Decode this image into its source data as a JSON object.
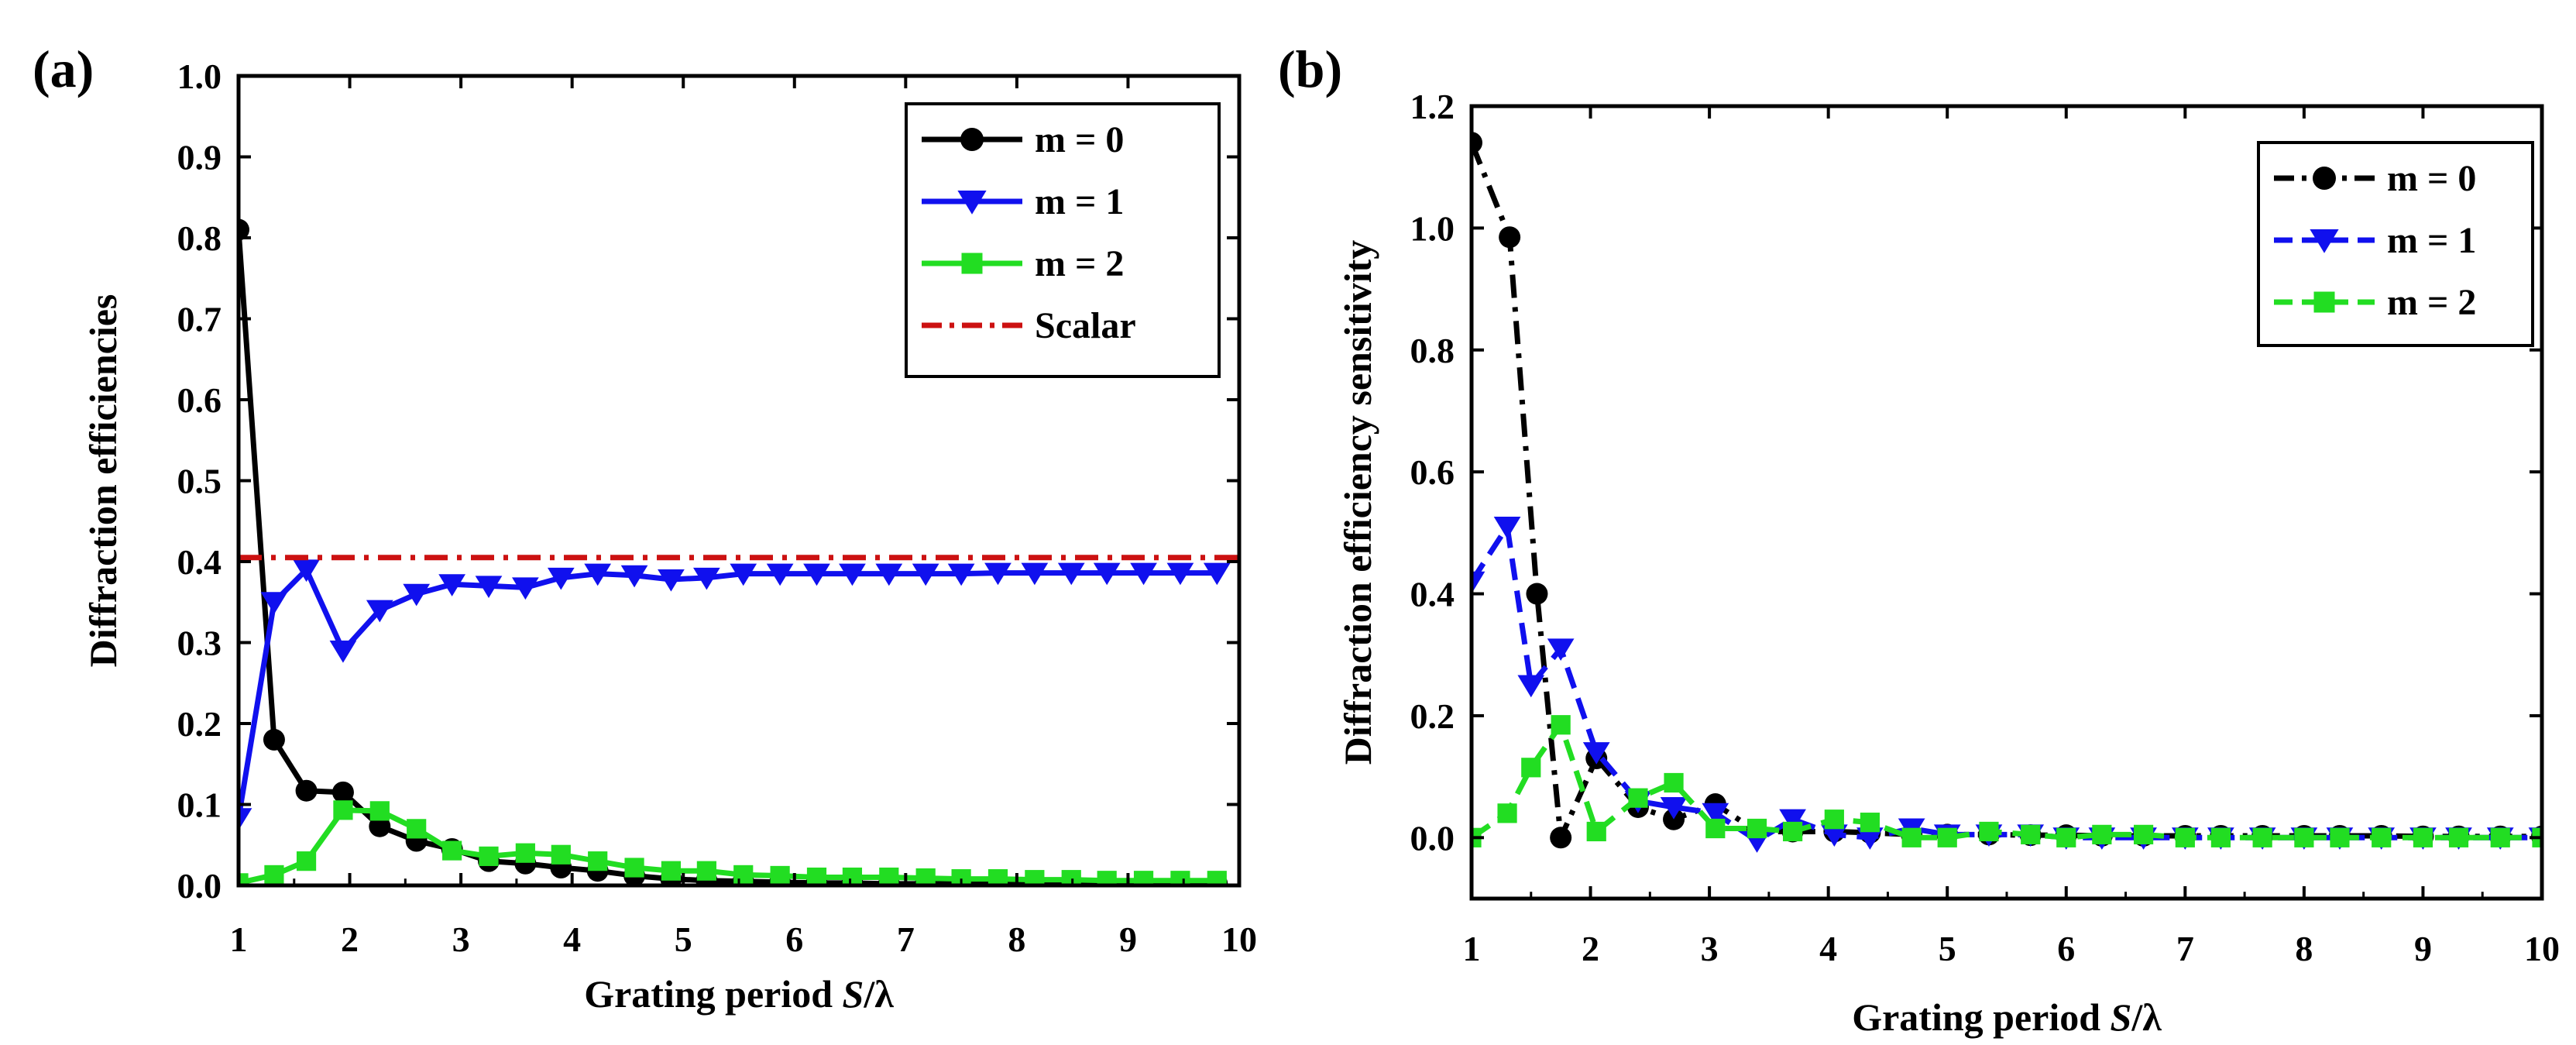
{
  "colors": {
    "m0": "#000000",
    "m1": "#1010ee",
    "m2": "#22dd22",
    "scalar": "#cc1111"
  },
  "chart_data": [
    {
      "type": "line",
      "panel_label": "(a)",
      "xlabel_prefix": "Grating period ",
      "xlabel_var": "S",
      "xlabel_suffix": "/λ",
      "ylabel": "Diffraction efficiencies",
      "xlim": [
        1,
        10
      ],
      "ylim": [
        0,
        1.0
      ],
      "xticks": [
        "1",
        "2",
        "3",
        "4",
        "5",
        "6",
        "7",
        "8",
        "9",
        "10"
      ],
      "yticks": [
        "0.0",
        "0.1",
        "0.2",
        "0.3",
        "0.4",
        "0.5",
        "0.6",
        "0.7",
        "0.8",
        "0.9",
        "1.0"
      ],
      "legend_position": "top-right",
      "series": [
        {
          "name": "m = 0",
          "color_key": "m0",
          "marker": "circle",
          "dash": "solid",
          "x": [
            1.0,
            1.32,
            1.61,
            1.94,
            2.27,
            2.6,
            2.92,
            3.25,
            3.58,
            3.9,
            4.23,
            4.56,
            4.89,
            5.21,
            5.54,
            5.87,
            6.2,
            6.52,
            6.85,
            7.18,
            7.5,
            7.83,
            8.16,
            8.49,
            8.81,
            9.14,
            9.47,
            9.8
          ],
          "y": [
            0.81,
            0.18,
            0.117,
            0.115,
            0.073,
            0.055,
            0.045,
            0.03,
            0.027,
            0.022,
            0.018,
            0.012,
            0.008,
            0.006,
            0.005,
            0.004,
            0.003,
            0.003,
            0.002,
            0.002,
            0.002,
            0.002,
            0.002,
            0.002,
            0.002,
            0.002,
            0.002,
            0.002
          ]
        },
        {
          "name": "m = 1",
          "color_key": "m1",
          "marker": "triangle-down",
          "dash": "solid",
          "x": [
            1.0,
            1.32,
            1.61,
            1.94,
            2.27,
            2.6,
            2.92,
            3.25,
            3.58,
            3.9,
            4.23,
            4.56,
            4.89,
            5.21,
            5.54,
            5.87,
            6.2,
            6.52,
            6.85,
            7.18,
            7.5,
            7.83,
            8.16,
            8.49,
            8.81,
            9.14,
            9.47,
            9.8
          ],
          "y": [
            0.083,
            0.35,
            0.39,
            0.29,
            0.34,
            0.36,
            0.372,
            0.37,
            0.368,
            0.38,
            0.385,
            0.383,
            0.378,
            0.38,
            0.385,
            0.385,
            0.385,
            0.385,
            0.385,
            0.385,
            0.385,
            0.386,
            0.386,
            0.386,
            0.386,
            0.386,
            0.386,
            0.386
          ]
        },
        {
          "name": "m = 2",
          "color_key": "m2",
          "marker": "square",
          "dash": "solid",
          "x": [
            1.0,
            1.32,
            1.61,
            1.94,
            2.27,
            2.6,
            2.92,
            3.25,
            3.58,
            3.9,
            4.23,
            4.56,
            4.89,
            5.21,
            5.54,
            5.87,
            6.2,
            6.52,
            6.85,
            7.18,
            7.5,
            7.83,
            8.16,
            8.49,
            8.81,
            9.14,
            9.47,
            9.8
          ],
          "y": [
            0.003,
            0.013,
            0.03,
            0.093,
            0.092,
            0.07,
            0.043,
            0.036,
            0.04,
            0.038,
            0.03,
            0.022,
            0.018,
            0.018,
            0.013,
            0.012,
            0.01,
            0.01,
            0.01,
            0.009,
            0.008,
            0.008,
            0.007,
            0.007,
            0.006,
            0.006,
            0.006,
            0.006
          ]
        },
        {
          "name": "Scalar",
          "color_key": "scalar",
          "marker": "none",
          "dash": "dashdot",
          "x": [
            1.0,
            10.0
          ],
          "y": [
            0.405,
            0.405
          ]
        }
      ]
    },
    {
      "type": "line",
      "panel_label": "(b)",
      "xlabel_prefix": "Grating period ",
      "xlabel_var": "S",
      "xlabel_suffix": "/λ",
      "ylabel": "Diffraction efficiency sensitivity",
      "xlim": [
        1,
        10
      ],
      "ylim": [
        -0.1,
        1.2
      ],
      "xticks": [
        "1",
        "2",
        "3",
        "4",
        "5",
        "6",
        "7",
        "8",
        "9",
        "10"
      ],
      "ytick_values": [
        0.0,
        0.2,
        0.4,
        0.6,
        0.8,
        1.0,
        1.2
      ],
      "yticks": [
        "0.0",
        "0.2",
        "0.4",
        "0.6",
        "0.8",
        "1.0",
        "1.2"
      ],
      "legend_position": "top-right",
      "series": [
        {
          "name": "m = 0",
          "color_key": "m0",
          "marker": "circle",
          "dash": "dashdot",
          "x": [
            1.0,
            1.32,
            1.55,
            1.75,
            2.05,
            2.4,
            2.7,
            3.05,
            3.4,
            3.7,
            4.05,
            4.35,
            4.7,
            5.0,
            5.35,
            5.7,
            6.0,
            6.3,
            6.65,
            7.0,
            7.3,
            7.65,
            8.0,
            8.3,
            8.65,
            9.0,
            9.3,
            9.65,
            10.0
          ],
          "y": [
            1.14,
            0.985,
            0.4,
            0.0,
            0.13,
            0.05,
            0.03,
            0.055,
            0.01,
            0.01,
            0.01,
            0.008,
            0.005,
            0.005,
            0.005,
            0.004,
            0.004,
            0.003,
            0.003,
            0.003,
            0.003,
            0.003,
            0.003,
            0.003,
            0.003,
            0.002,
            0.002,
            0.002,
            0.002
          ]
        },
        {
          "name": "m = 1",
          "color_key": "m1",
          "marker": "triangle-down",
          "dash": "dash",
          "x": [
            1.0,
            1.3,
            1.5,
            1.75,
            2.05,
            2.4,
            2.7,
            3.05,
            3.4,
            3.7,
            4.05,
            4.35,
            4.7,
            5.0,
            5.35,
            5.7,
            6.0,
            6.3,
            6.65,
            7.0,
            7.3,
            7.65,
            8.0,
            8.3,
            8.65,
            9.0,
            9.3,
            9.65,
            10.0
          ],
          "y": [
            0.42,
            0.51,
            0.25,
            0.31,
            0.14,
            0.06,
            0.05,
            0.04,
            -0.005,
            0.03,
            0.005,
            0.0,
            0.015,
            0.005,
            0.005,
            0.005,
            0.0,
            0.0,
            0.0,
            0.0,
            0.0,
            0.0,
            0.0,
            0.0,
            0.0,
            0.0,
            0.0,
            0.0,
            0.0
          ]
        },
        {
          "name": "m = 2",
          "color_key": "m2",
          "marker": "square",
          "dash": "dash",
          "x": [
            1.0,
            1.3,
            1.5,
            1.75,
            2.05,
            2.4,
            2.7,
            3.05,
            3.4,
            3.7,
            4.05,
            4.35,
            4.7,
            5.0,
            5.35,
            5.7,
            6.0,
            6.3,
            6.65,
            7.0,
            7.3,
            7.65,
            8.0,
            8.3,
            8.65,
            9.0,
            9.3,
            9.65,
            10.0
          ],
          "y": [
            0.0,
            0.04,
            0.115,
            0.185,
            0.01,
            0.065,
            0.09,
            0.015,
            0.015,
            0.01,
            0.03,
            0.025,
            0.0,
            0.0,
            0.01,
            0.005,
            0.0,
            0.005,
            0.005,
            0.0,
            0.0,
            0.0,
            0.0,
            0.0,
            0.0,
            0.0,
            0.0,
            0.0,
            0.0
          ]
        }
      ]
    }
  ]
}
